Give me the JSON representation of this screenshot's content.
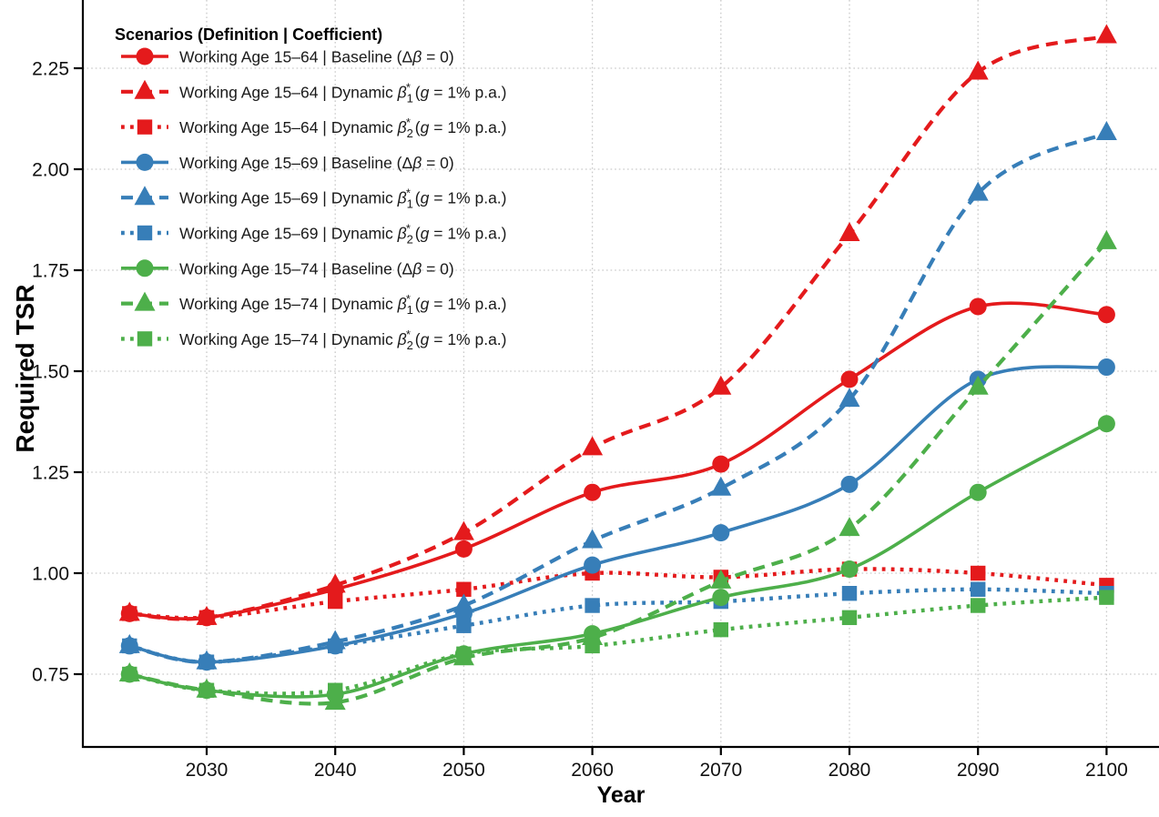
{
  "chart_data": {
    "type": "line",
    "title": "",
    "xlabel": "Year",
    "ylabel": "Required TSR",
    "legend_title": "Scenarios (Definition | Coefficient)",
    "legend_position": "top-left",
    "grid": true,
    "x": [
      2024,
      2030,
      2040,
      2050,
      2060,
      2070,
      2080,
      2090,
      2100
    ],
    "xticks": [
      2030,
      2040,
      2050,
      2060,
      2070,
      2080,
      2090,
      2100
    ],
    "yticks": [
      0.75,
      1.0,
      1.25,
      1.5,
      1.75,
      2.0,
      2.25
    ],
    "ylim": [
      0.57,
      2.42
    ],
    "xlim": [
      2020,
      2104
    ],
    "colors": {
      "age-15-64": "#E41A1C",
      "age-15-69": "#377EB8",
      "age-15-74": "#4DAF4A"
    },
    "series": [
      {
        "name": "wa-15-64-baseline",
        "label": "Working Age 15–64 | Baseline (Δ_β_ = 0)",
        "color": "#E41A1C",
        "line": "solid",
        "marker": "circle",
        "values": [
          0.9,
          0.89,
          0.96,
          1.06,
          1.2,
          1.27,
          1.48,
          1.66,
          1.64
        ]
      },
      {
        "name": "wa-15-64-dynamic-beta1",
        "label": "Working Age 15–64 | Dynamic _β_~1~^*^  (_g_ = 1% p.a.)",
        "color": "#E41A1C",
        "line": "dashed",
        "marker": "triangle",
        "values": [
          0.9,
          0.89,
          0.97,
          1.1,
          1.31,
          1.46,
          1.84,
          2.24,
          2.33
        ]
      },
      {
        "name": "wa-15-64-dynamic-beta2",
        "label": "Working Age 15–64 | Dynamic _β_~2~^*^  (_g_ = 1% p.a.)",
        "color": "#E41A1C",
        "line": "dotted",
        "marker": "square",
        "values": [
          0.9,
          0.89,
          0.93,
          0.96,
          1.0,
          0.99,
          1.01,
          1.0,
          0.97
        ]
      },
      {
        "name": "wa-15-69-baseline",
        "label": "Working Age 15–69 | Baseline (Δ_β_ = 0)",
        "color": "#377EB8",
        "line": "solid",
        "marker": "circle",
        "values": [
          0.82,
          0.78,
          0.82,
          0.9,
          1.02,
          1.1,
          1.22,
          1.48,
          1.51
        ]
      },
      {
        "name": "wa-15-69-dynamic-beta1",
        "label": "Working Age 15–69 | Dynamic _β_~1~^*^  (_g_ = 1% p.a.)",
        "color": "#377EB8",
        "line": "dashed",
        "marker": "triangle",
        "values": [
          0.82,
          0.78,
          0.83,
          0.92,
          1.08,
          1.21,
          1.43,
          1.94,
          2.09
        ]
      },
      {
        "name": "wa-15-69-dynamic-beta2",
        "label": "Working Age 15–69 | Dynamic _β_~2~^*^  (_g_ = 1% p.a.)",
        "color": "#377EB8",
        "line": "dotted",
        "marker": "square",
        "values": [
          0.82,
          0.78,
          0.82,
          0.87,
          0.92,
          0.93,
          0.95,
          0.96,
          0.95
        ]
      },
      {
        "name": "wa-15-74-baseline",
        "label": "Working Age 15–74 | Baseline (Δ_β_ = 0)",
        "color": "#4DAF4A",
        "line": "solid",
        "marker": "circle",
        "values": [
          0.75,
          0.71,
          0.7,
          0.8,
          0.85,
          0.94,
          1.01,
          1.2,
          1.37
        ]
      },
      {
        "name": "wa-15-74-dynamic-beta1",
        "label": "Working Age 15–74 | Dynamic _β_~1~^*^  (_g_ = 1% p.a.)",
        "color": "#4DAF4A",
        "line": "dashed",
        "marker": "triangle",
        "values": [
          0.75,
          0.71,
          0.68,
          0.79,
          0.84,
          0.98,
          1.11,
          1.46,
          1.82
        ]
      },
      {
        "name": "wa-15-74-dynamic-beta2",
        "label": "Working Age 15–74 | Dynamic _β_~2~^*^  (_g_ = 1% p.a.)",
        "color": "#4DAF4A",
        "line": "dotted",
        "marker": "square",
        "values": [
          0.75,
          0.71,
          0.71,
          0.8,
          0.82,
          0.86,
          0.89,
          0.92,
          0.94
        ]
      }
    ]
  }
}
